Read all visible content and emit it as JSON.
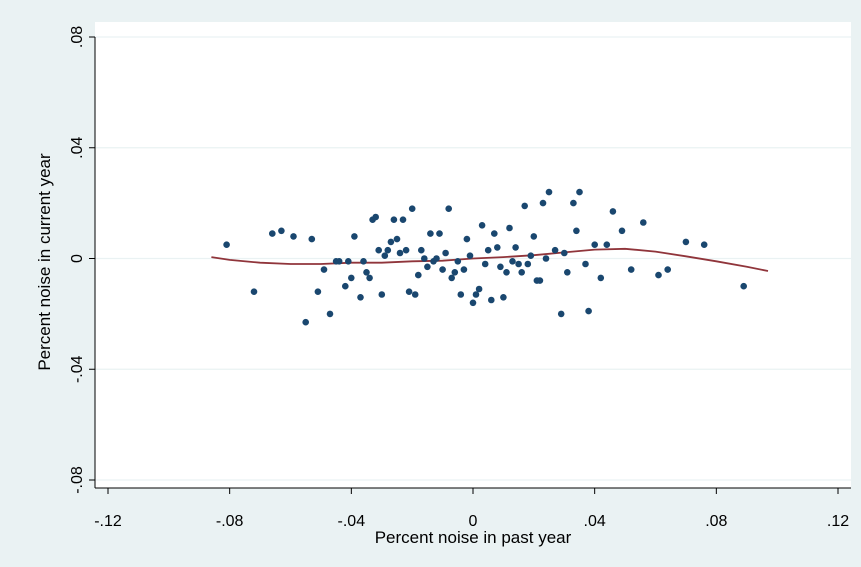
{
  "chart_data": {
    "type": "scatter",
    "title": "",
    "xlabel": "Percent noise in past year",
    "ylabel": "Percent noise in current year",
    "xlim": [
      -0.12,
      0.12
    ],
    "ylim": [
      -0.08,
      0.08
    ],
    "x_ticks": [
      -0.12,
      -0.08,
      -0.04,
      0,
      0.04,
      0.08,
      0.12
    ],
    "x_tick_labels": [
      "-.12",
      "-.08",
      "-.04",
      "0",
      ".04",
      ".08",
      ".12"
    ],
    "y_ticks": [
      -0.08,
      -0.04,
      0,
      0.04,
      0.08
    ],
    "y_tick_labels": [
      "-.08",
      "-.04",
      "0",
      ".04",
      ".08"
    ],
    "grid": "horizontal",
    "legend": "none",
    "colors": {
      "points": "#1a476f",
      "fit": "#90353b",
      "background": "#eaf2f3",
      "plot": "#ffffff",
      "grid": "#eaf2f3"
    },
    "series": [
      {
        "type": "scatter",
        "points": [
          [
            -0.081,
            0.005
          ],
          [
            -0.072,
            -0.012
          ],
          [
            -0.066,
            0.009
          ],
          [
            -0.063,
            0.01
          ],
          [
            -0.059,
            0.008
          ],
          [
            -0.055,
            -0.023
          ],
          [
            -0.053,
            0.007
          ],
          [
            -0.051,
            -0.012
          ],
          [
            -0.049,
            -0.004
          ],
          [
            -0.047,
            -0.02
          ],
          [
            -0.045,
            -0.001
          ],
          [
            -0.044,
            -0.001
          ],
          [
            -0.042,
            -0.01
          ],
          [
            -0.041,
            -0.001
          ],
          [
            -0.04,
            -0.007
          ],
          [
            -0.039,
            0.008
          ],
          [
            -0.037,
            -0.014
          ],
          [
            -0.036,
            -0.001
          ],
          [
            -0.035,
            -0.005
          ],
          [
            -0.034,
            -0.007
          ],
          [
            -0.033,
            0.014
          ],
          [
            -0.032,
            0.015
          ],
          [
            -0.031,
            0.003
          ],
          [
            -0.03,
            -0.013
          ],
          [
            -0.029,
            0.001
          ],
          [
            -0.028,
            0.003
          ],
          [
            -0.027,
            0.006
          ],
          [
            -0.026,
            0.014
          ],
          [
            -0.025,
            0.007
          ],
          [
            -0.024,
            0.002
          ],
          [
            -0.023,
            0.014
          ],
          [
            -0.022,
            0.003
          ],
          [
            -0.021,
            -0.012
          ],
          [
            -0.02,
            0.018
          ],
          [
            -0.019,
            -0.013
          ],
          [
            -0.018,
            -0.006
          ],
          [
            -0.017,
            0.003
          ],
          [
            -0.016,
            0.0
          ],
          [
            -0.015,
            -0.003
          ],
          [
            -0.014,
            0.009
          ],
          [
            -0.013,
            -0.001
          ],
          [
            -0.012,
            0.0
          ],
          [
            -0.011,
            0.009
          ],
          [
            -0.01,
            -0.004
          ],
          [
            -0.009,
            0.002
          ],
          [
            -0.008,
            0.018
          ],
          [
            -0.007,
            -0.007
          ],
          [
            -0.006,
            -0.005
          ],
          [
            -0.005,
            -0.001
          ],
          [
            -0.004,
            -0.013
          ],
          [
            -0.003,
            -0.004
          ],
          [
            -0.002,
            0.007
          ],
          [
            -0.001,
            0.001
          ],
          [
            0.0,
            -0.016
          ],
          [
            0.001,
            -0.013
          ],
          [
            0.002,
            -0.011
          ],
          [
            0.003,
            0.012
          ],
          [
            0.004,
            -0.002
          ],
          [
            0.005,
            0.003
          ],
          [
            0.006,
            -0.015
          ],
          [
            0.007,
            0.009
          ],
          [
            0.008,
            0.004
          ],
          [
            0.009,
            -0.003
          ],
          [
            0.01,
            -0.014
          ],
          [
            0.011,
            -0.005
          ],
          [
            0.012,
            0.011
          ],
          [
            0.013,
            -0.001
          ],
          [
            0.014,
            0.004
          ],
          [
            0.015,
            -0.002
          ],
          [
            0.016,
            -0.005
          ],
          [
            0.017,
            0.019
          ],
          [
            0.018,
            -0.002
          ],
          [
            0.019,
            0.001
          ],
          [
            0.02,
            0.008
          ],
          [
            0.021,
            -0.008
          ],
          [
            0.022,
            -0.008
          ],
          [
            0.023,
            0.02
          ],
          [
            0.024,
            0.0
          ],
          [
            0.025,
            0.024
          ],
          [
            0.027,
            0.003
          ],
          [
            0.029,
            -0.02
          ],
          [
            0.03,
            0.002
          ],
          [
            0.031,
            -0.005
          ],
          [
            0.033,
            0.02
          ],
          [
            0.034,
            0.01
          ],
          [
            0.035,
            0.024
          ],
          [
            0.037,
            -0.002
          ],
          [
            0.038,
            -0.019
          ],
          [
            0.04,
            0.005
          ],
          [
            0.042,
            -0.007
          ],
          [
            0.044,
            0.005
          ],
          [
            0.046,
            0.017
          ],
          [
            0.049,
            0.01
          ],
          [
            0.052,
            -0.004
          ],
          [
            0.056,
            0.013
          ],
          [
            0.061,
            -0.006
          ],
          [
            0.064,
            -0.004
          ],
          [
            0.07,
            0.006
          ],
          [
            0.076,
            0.005
          ],
          [
            0.089,
            -0.01
          ]
        ]
      },
      {
        "type": "line",
        "points": [
          [
            -0.086,
            0.0005
          ],
          [
            -0.08,
            -0.0005
          ],
          [
            -0.07,
            -0.0015
          ],
          [
            -0.06,
            -0.002
          ],
          [
            -0.05,
            -0.002
          ],
          [
            -0.04,
            -0.0015
          ],
          [
            -0.03,
            -0.0015
          ],
          [
            -0.02,
            -0.001
          ],
          [
            -0.01,
            -0.0008
          ],
          [
            0.0,
            0.0
          ],
          [
            0.01,
            0.0005
          ],
          [
            0.02,
            0.0012
          ],
          [
            0.03,
            0.0022
          ],
          [
            0.04,
            0.0032
          ],
          [
            0.05,
            0.0035
          ],
          [
            0.06,
            0.0025
          ],
          [
            0.07,
            0.0008
          ],
          [
            0.08,
            -0.001
          ],
          [
            0.09,
            -0.003
          ],
          [
            0.097,
            -0.0045
          ]
        ]
      }
    ]
  }
}
